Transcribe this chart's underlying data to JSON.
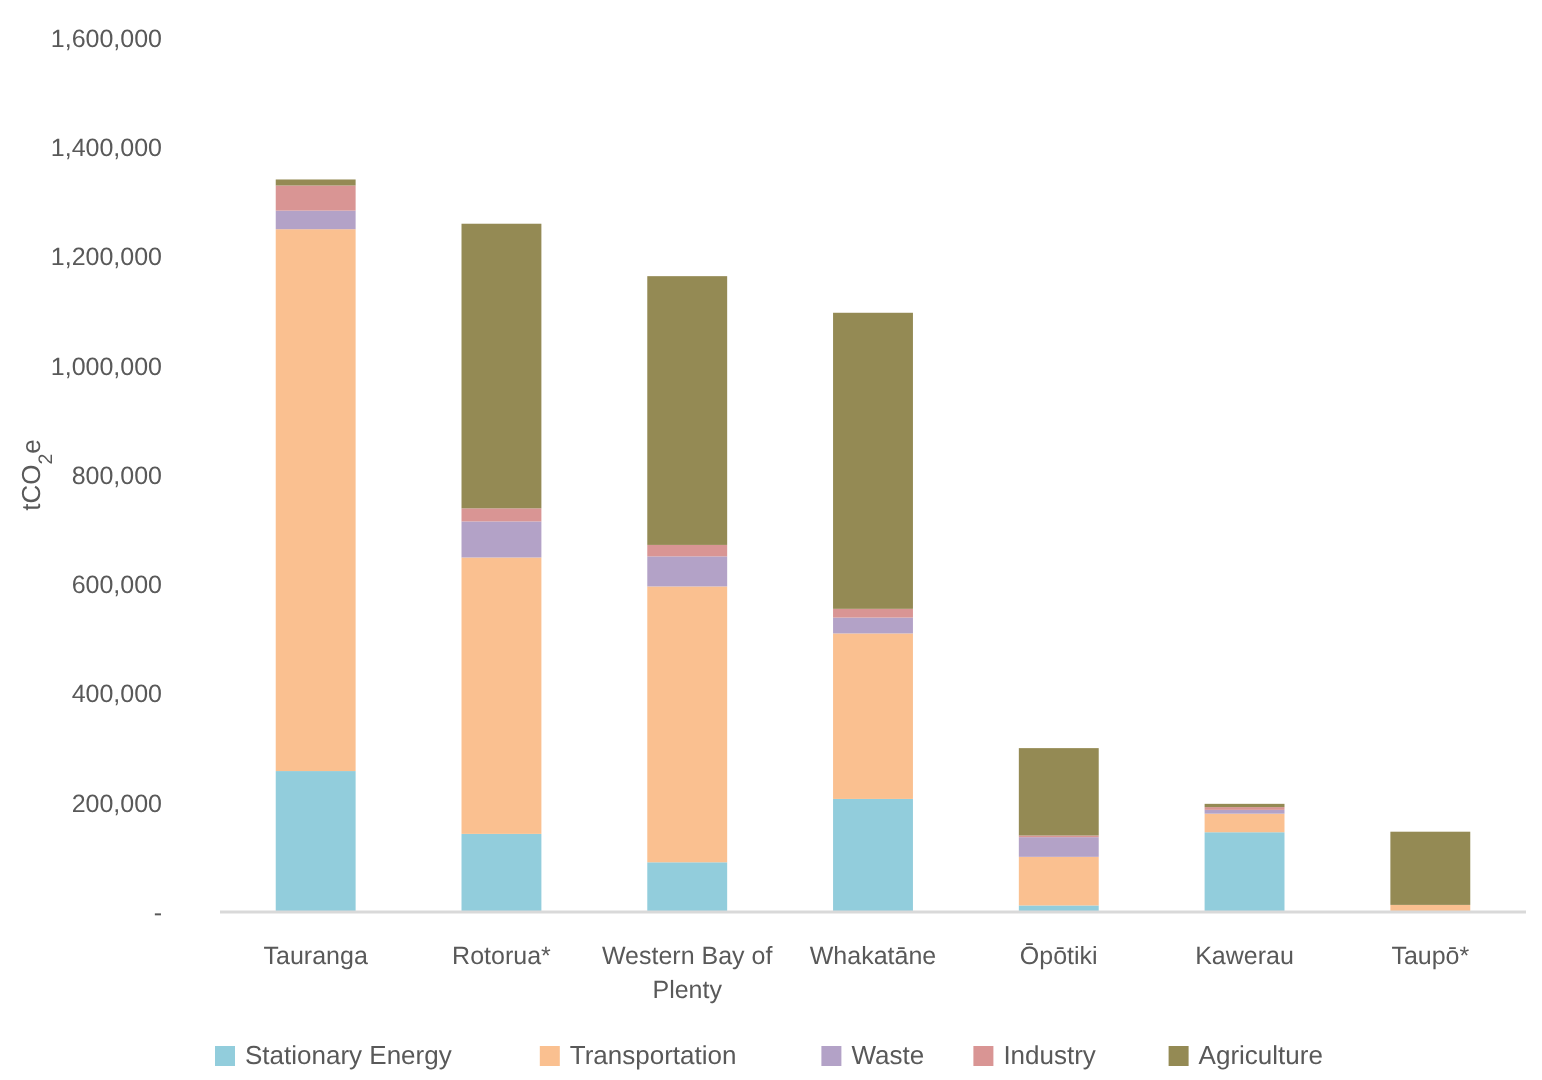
{
  "chart_data": {
    "type": "bar",
    "stacked": true,
    "ylabel": "tCO$_{2}$e",
    "categories": [
      "Tauranga",
      "Rotorua*",
      "Western Bay of Plenty",
      "Whakatāne",
      "Ōpōtiki",
      "Kawerau",
      "Taupō*"
    ],
    "ylim": [
      0,
      1600000
    ],
    "yticks": [
      {
        "value": 0,
        "label": "-"
      },
      {
        "value": 200000,
        "label": "200,000"
      },
      {
        "value": 400000,
        "label": "400,000"
      },
      {
        "value": 600000,
        "label": "600,000"
      },
      {
        "value": 800000,
        "label": "800,000"
      },
      {
        "value": 1000000,
        "label": "1,000,000"
      },
      {
        "value": 1200000,
        "label": "1,200,000"
      },
      {
        "value": 1400000,
        "label": "1,400,000"
      },
      {
        "value": 1600000,
        "label": "1,600,000"
      }
    ],
    "grid": false,
    "legend": "bottom",
    "series": [
      {
        "name": "Stationary Energy",
        "color": "#92cddc",
        "values": [
          258000,
          143000,
          91000,
          207000,
          12000,
          146000,
          0
        ]
      },
      {
        "name": "Transportation",
        "color": "#fac090",
        "values": [
          992000,
          506000,
          505000,
          303000,
          89000,
          34000,
          13000
        ]
      },
      {
        "name": "Waste",
        "color": "#b3a2c7",
        "values": [
          34000,
          66000,
          55000,
          29000,
          36000,
          7000,
          0
        ]
      },
      {
        "name": "Industry",
        "color": "#d99594",
        "values": [
          46000,
          24000,
          21000,
          16000,
          3000,
          5000,
          0
        ]
      },
      {
        "name": "Agriculture",
        "color": "#948a54",
        "values": [
          11000,
          521000,
          492000,
          542000,
          160000,
          6000,
          134000
        ]
      }
    ]
  }
}
